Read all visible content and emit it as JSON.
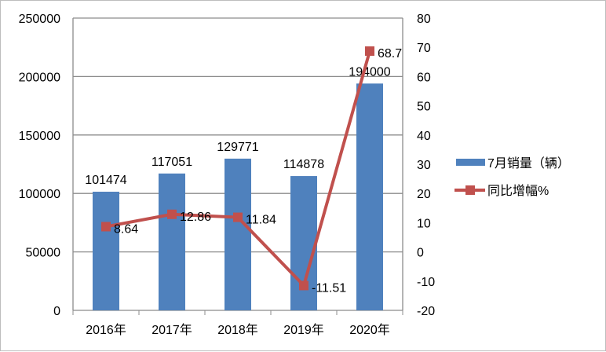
{
  "chart_data": {
    "type": "bar+line",
    "title": "",
    "categories": [
      "2016年",
      "2017年",
      "2018年",
      "2019年",
      "2020年"
    ],
    "series": [
      {
        "name": "7月销量（辆）",
        "type": "bar",
        "axis": "left",
        "color": "#4F81BD",
        "values": [
          101474,
          117051,
          129771,
          114878,
          194000
        ]
      },
      {
        "name": "同比增幅%",
        "type": "line",
        "axis": "right",
        "color": "#C0504D",
        "values": [
          8.64,
          12.86,
          11.84,
          -11.51,
          68.7
        ]
      }
    ],
    "left_axis": {
      "ylim": [
        0,
        250000
      ],
      "ticks": [
        "0",
        "50000",
        "100000",
        "150000",
        "200000",
        "250000"
      ]
    },
    "right_axis": {
      "ylim": [
        -20,
        80
      ],
      "ticks": [
        "-20",
        "-10",
        "0",
        "10",
        "20",
        "30",
        "40",
        "50",
        "60",
        "70",
        "80"
      ]
    },
    "grid": true,
    "legend": "right"
  }
}
